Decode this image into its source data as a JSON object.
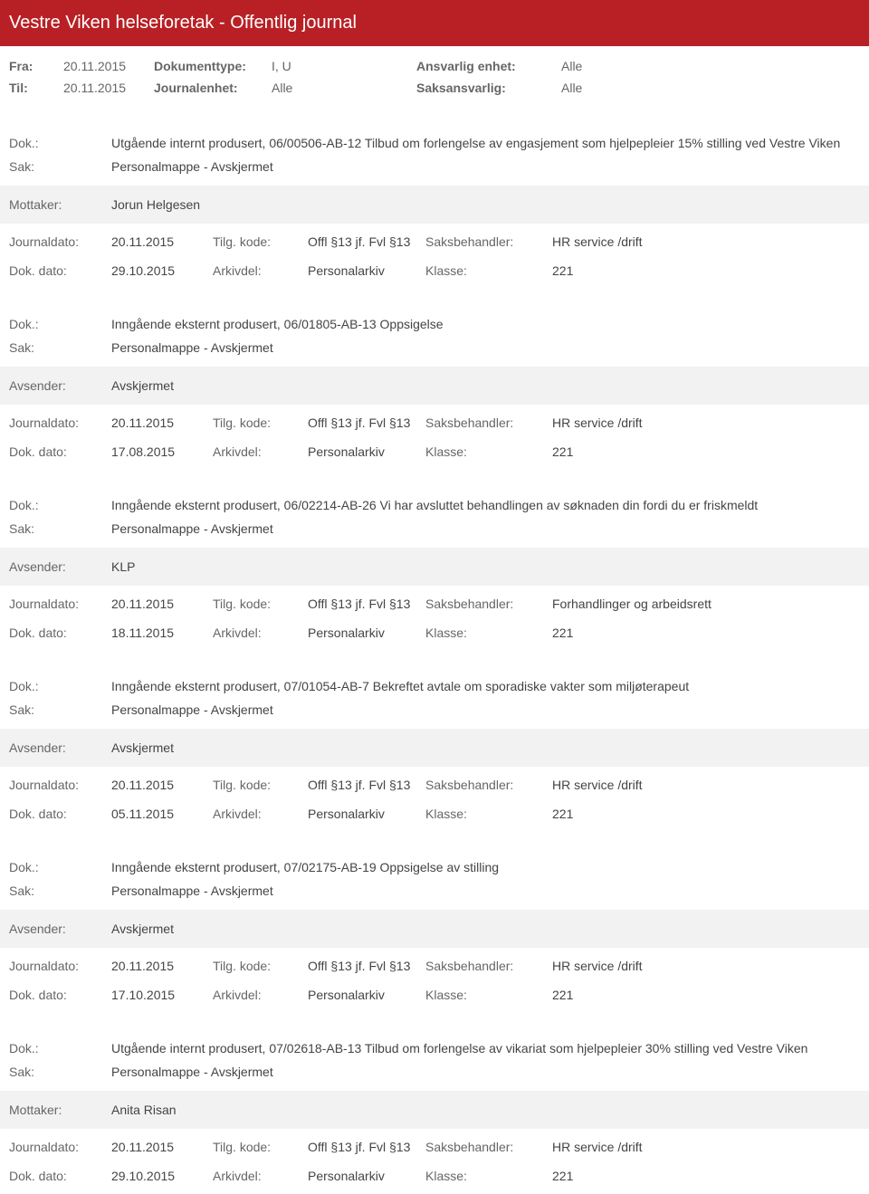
{
  "header": {
    "title": "Vestre Viken helseforetak - Offentlig journal"
  },
  "meta": {
    "fra_label": "Fra:",
    "fra_value": "20.11.2015",
    "til_label": "Til:",
    "til_value": "20.11.2015",
    "dokumenttype_label": "Dokumenttype:",
    "dokumenttype_value": "I, U",
    "journalenhet_label": "Journalenhet:",
    "journalenhet_value": "Alle",
    "ansvarlig_label": "Ansvarlig enhet:",
    "ansvarlig_value": "Alle",
    "saksansvarlig_label": "Saksansvarlig:",
    "saksansvarlig_value": "Alle"
  },
  "labels": {
    "dok": "Dok.:",
    "sak": "Sak:",
    "mottaker": "Mottaker:",
    "avsender": "Avsender:",
    "journaldato": "Journaldato:",
    "dokdato": "Dok. dato:",
    "tilgkode": "Tilg. kode:",
    "arkivdel": "Arkivdel:",
    "saksbehandler": "Saksbehandler:",
    "klasse": "Klasse:"
  },
  "entries": [
    {
      "dok": "Utgående internt produsert, 06/00506-AB-12 Tilbud om forlengelse av engasjement som hjelpepleier 15% stilling ved Vestre Viken",
      "sak": "Personalmappe - Avskjermet",
      "party_label": "Mottaker:",
      "party_value": "Jorun Helgesen",
      "journaldato": "20.11.2015",
      "tilgkode": "Offl §13 jf. Fvl §13",
      "saksbehandler": "HR service /drift",
      "dokdato": "29.10.2015",
      "arkivdel": "Personalarkiv",
      "klasse": "221"
    },
    {
      "dok": "Inngående eksternt produsert, 06/01805-AB-13 Oppsigelse",
      "sak": "Personalmappe - Avskjermet",
      "party_label": "Avsender:",
      "party_value": "Avskjermet",
      "journaldato": "20.11.2015",
      "tilgkode": "Offl §13 jf. Fvl §13",
      "saksbehandler": "HR service /drift",
      "dokdato": "17.08.2015",
      "arkivdel": "Personalarkiv",
      "klasse": "221"
    },
    {
      "dok": "Inngående eksternt produsert, 06/02214-AB-26 Vi har avsluttet behandlingen av søknaden din fordi du er friskmeldt",
      "sak": "Personalmappe - Avskjermet",
      "party_label": "Avsender:",
      "party_value": "KLP",
      "journaldato": "20.11.2015",
      "tilgkode": "Offl §13 jf. Fvl §13",
      "saksbehandler": "Forhandlinger og arbeidsrett",
      "dokdato": "18.11.2015",
      "arkivdel": "Personalarkiv",
      "klasse": "221"
    },
    {
      "dok": "Inngående eksternt produsert, 07/01054-AB-7 Bekreftet avtale om sporadiske vakter som miljøterapeut",
      "sak": "Personalmappe - Avskjermet",
      "party_label": "Avsender:",
      "party_value": "Avskjermet",
      "journaldato": "20.11.2015",
      "tilgkode": "Offl §13 jf. Fvl §13",
      "saksbehandler": "HR service /drift",
      "dokdato": "05.11.2015",
      "arkivdel": "Personalarkiv",
      "klasse": "221"
    },
    {
      "dok": "Inngående eksternt produsert, 07/02175-AB-19 Oppsigelse av stilling",
      "sak": "Personalmappe - Avskjermet",
      "party_label": "Avsender:",
      "party_value": "Avskjermet",
      "journaldato": "20.11.2015",
      "tilgkode": "Offl §13 jf. Fvl §13",
      "saksbehandler": "HR service /drift",
      "dokdato": "17.10.2015",
      "arkivdel": "Personalarkiv",
      "klasse": "221"
    },
    {
      "dok": "Utgående internt produsert, 07/02618-AB-13 Tilbud om forlengelse av vikariat som hjelpepleier 30% stilling ved Vestre Viken",
      "sak": "Personalmappe - Avskjermet",
      "party_label": "Mottaker:",
      "party_value": "Anita Risan",
      "journaldato": "20.11.2015",
      "tilgkode": "Offl §13 jf. Fvl §13",
      "saksbehandler": "HR service /drift",
      "dokdato": "29.10.2015",
      "arkivdel": "Personalarkiv",
      "klasse": "221"
    }
  ]
}
